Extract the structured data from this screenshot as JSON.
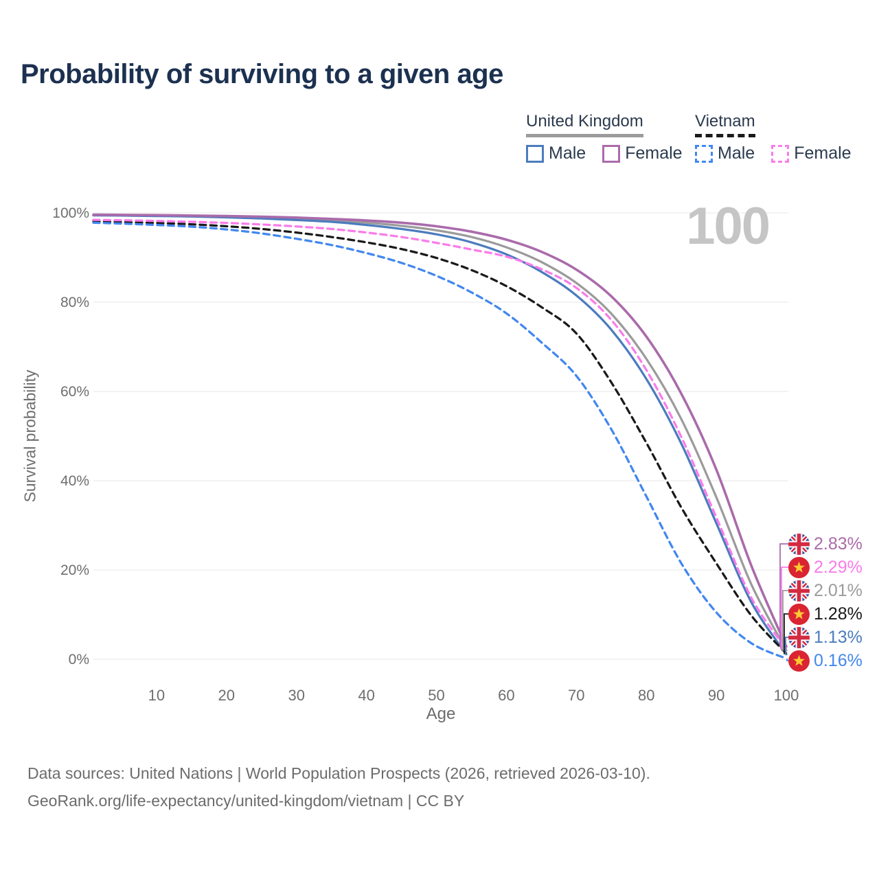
{
  "title": "Probability of surviving to a given age",
  "watermark_age": "100",
  "legend": {
    "groups": [
      {
        "name": "United Kingdom",
        "style": "solid",
        "line_color": "#9b9b9b",
        "items": [
          {
            "label": "Male",
            "color": "#4b7cbe"
          },
          {
            "label": "Female",
            "color": "#aa6bab"
          }
        ]
      },
      {
        "name": "Vietnam",
        "style": "dashed",
        "line_color": "#1a1a1a",
        "items": [
          {
            "label": "Male",
            "color": "#4287f0"
          },
          {
            "label": "Female",
            "color": "#f97cea"
          }
        ]
      }
    ]
  },
  "chart_data": {
    "type": "line",
    "title": "Probability of surviving to a given age",
    "xlabel": "Age",
    "ylabel": "Survival probability",
    "xlim": [
      0,
      100
    ],
    "ylim": [
      0,
      100
    ],
    "grid": true,
    "legend_position": "top-right",
    "x_ticks": [
      {
        "value": 10,
        "label": "10"
      },
      {
        "value": 20,
        "label": "20"
      },
      {
        "value": 30,
        "label": "30"
      },
      {
        "value": 40,
        "label": "40"
      },
      {
        "value": 50,
        "label": "50"
      },
      {
        "value": 60,
        "label": "60"
      },
      {
        "value": 70,
        "label": "70"
      },
      {
        "value": 80,
        "label": "80"
      },
      {
        "value": 90,
        "label": "90"
      },
      {
        "value": 100,
        "label": "100"
      }
    ],
    "y_ticks": [
      {
        "value": 0,
        "label": "0%"
      },
      {
        "value": 20,
        "label": "20%"
      },
      {
        "value": 40,
        "label": "40%"
      },
      {
        "value": 60,
        "label": "60%"
      },
      {
        "value": 80,
        "label": "80%"
      },
      {
        "value": 100,
        "label": "100%"
      }
    ],
    "x": [
      0,
      5,
      10,
      15,
      20,
      25,
      30,
      35,
      40,
      45,
      50,
      55,
      60,
      65,
      70,
      75,
      80,
      85,
      90,
      95,
      100
    ],
    "series": [
      {
        "id": "uk-all",
        "name": "United Kingdom (all)",
        "color": "#9b9b9b",
        "dashed": false,
        "width": 3.25,
        "flag": "uk",
        "end_label": "2.01%",
        "label_order": 2,
        "values": [
          99.5,
          99.45,
          99.4,
          99.3,
          99.15,
          98.95,
          98.7,
          98.3,
          97.8,
          97.1,
          96.1,
          94.6,
          92.3,
          89.0,
          84.3,
          77.4,
          67.3,
          53.8,
          36.3,
          16.8,
          2.01
        ]
      },
      {
        "id": "uk-male",
        "name": "United Kingdom Male",
        "color": "#4b7cbe",
        "dashed": false,
        "width": 3.25,
        "flag": "uk",
        "end_label": "1.13%",
        "label_order": 4,
        "values": [
          99.45,
          99.4,
          99.3,
          99.2,
          99.0,
          98.75,
          98.4,
          98.0,
          97.3,
          96.4,
          95.2,
          93.4,
          90.7,
          86.8,
          81.5,
          73.8,
          62.8,
          48.3,
          30.5,
          12.8,
          1.13
        ]
      },
      {
        "id": "uk-female",
        "name": "United Kingdom Female",
        "color": "#aa6bab",
        "dashed": false,
        "width": 3.6,
        "flag": "uk",
        "end_label": "2.83%",
        "label_order": 0,
        "values": [
          99.6,
          99.55,
          99.5,
          99.4,
          99.3,
          99.15,
          98.95,
          98.65,
          98.3,
          97.8,
          97.0,
          95.8,
          94.0,
          91.3,
          87.3,
          81.3,
          72.3,
          59.5,
          42.5,
          21.0,
          2.83
        ]
      },
      {
        "id": "vn-all",
        "name": "Vietnam (all)",
        "color": "#1a1a1a",
        "dashed": true,
        "width": 3.25,
        "flag": "vn",
        "end_label": "1.28%",
        "label_order": 3,
        "values": [
          98.1,
          97.95,
          97.75,
          97.45,
          97.0,
          96.4,
          95.6,
          94.6,
          93.4,
          91.9,
          89.9,
          87.2,
          83.6,
          78.9,
          73.0,
          62.0,
          48.5,
          34.0,
          21.5,
          9.8,
          1.28
        ]
      },
      {
        "id": "vn-male",
        "name": "Vietnam Male",
        "color": "#4287f0",
        "dashed": true,
        "width": 3.25,
        "flag": "vn",
        "end_label": "0.16%",
        "label_order": 5,
        "values": [
          97.8,
          97.6,
          97.3,
          96.9,
          96.3,
          95.4,
          94.2,
          92.8,
          91.0,
          88.8,
          85.9,
          82.2,
          77.5,
          71.0,
          63.5,
          51.5,
          36.5,
          21.5,
          10.5,
          3.6,
          0.16
        ]
      },
      {
        "id": "vn-female",
        "name": "Vietnam Female",
        "color": "#f97cea",
        "dashed": true,
        "width": 3.25,
        "flag": "vn",
        "end_label": "2.29%",
        "label_order": 1,
        "values": [
          98.45,
          98.35,
          98.2,
          98.0,
          97.75,
          97.4,
          96.95,
          96.4,
          95.6,
          94.6,
          93.3,
          91.8,
          90.2,
          87.4,
          83.2,
          76.0,
          64.8,
          49.8,
          31.8,
          13.8,
          2.29
        ]
      }
    ]
  },
  "footer": {
    "line1": "Data sources: United Nations | World Population Prospects (2026, retrieved 2026-03-10).",
    "line2": "GeoRank.org/life-expectancy/united-kingdom/vietnam | CC BY"
  }
}
